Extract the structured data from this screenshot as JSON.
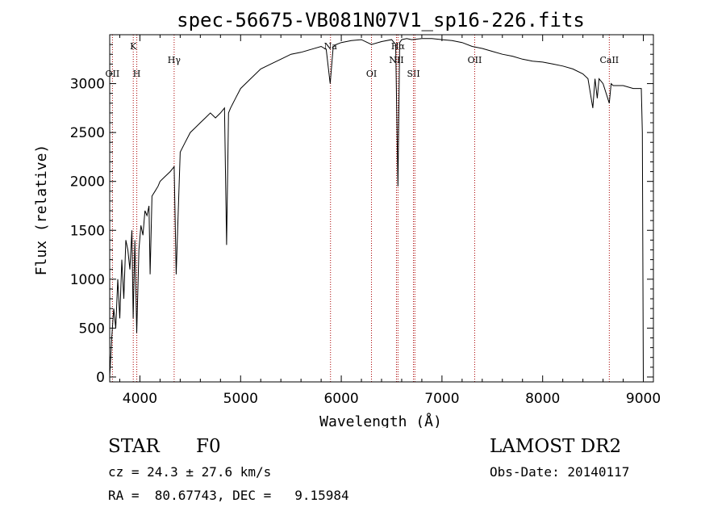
{
  "chart_data": {
    "type": "line",
    "title": "spec-56675-VB081N07V1_sp16-226.fits",
    "xlabel": "Wavelength (Å)",
    "ylabel": "Flux (relative)",
    "xlim": [
      3700,
      9100
    ],
    "ylim": [
      -50,
      3500
    ],
    "xticks": [
      4000,
      5000,
      6000,
      7000,
      8000,
      9000
    ],
    "yticks": [
      0,
      500,
      1000,
      1500,
      2000,
      2500,
      3000
    ],
    "series": [
      {
        "x": [
          3700,
          3720,
          3740,
          3760,
          3780,
          3800,
          3820,
          3840,
          3860,
          3880,
          3900,
          3920,
          3933,
          3950,
          3968,
          3990,
          4010,
          4030,
          4050,
          4070,
          4090,
          4101,
          4120,
          4150,
          4180,
          4200,
          4250,
          4300,
          4340,
          4360,
          4400,
          4450,
          4500,
          4550,
          4600,
          4650,
          4700,
          4750,
          4800,
          4840,
          4861,
          4880,
          4900,
          4950,
          5000,
          5100,
          5200,
          5300,
          5400,
          5500,
          5600,
          5700,
          5800,
          5850,
          5890,
          5920,
          5950,
          6000,
          6100,
          6200,
          6300,
          6400,
          6500,
          6540,
          6563,
          6580,
          6600,
          6650,
          6700,
          6800,
          6900,
          7000,
          7100,
          7200,
          7300,
          7400,
          7500,
          7600,
          7700,
          7800,
          7900,
          8000,
          8100,
          8200,
          8300,
          8400,
          8450,
          8498,
          8520,
          8542,
          8560,
          8600,
          8662,
          8680,
          8700,
          8800,
          8900,
          8950,
          8980,
          8990,
          9000
        ],
        "y": [
          0,
          400,
          700,
          500,
          1000,
          600,
          1200,
          800,
          1400,
          1300,
          1100,
          1500,
          600,
          1400,
          450,
          1300,
          1550,
          1450,
          1700,
          1650,
          1750,
          1050,
          1850,
          1900,
          1950,
          2000,
          2050,
          2100,
          2150,
          1050,
          2300,
          2400,
          2500,
          2550,
          2600,
          2650,
          2700,
          2650,
          2700,
          2750,
          1350,
          2700,
          2750,
          2850,
          2950,
          3050,
          3150,
          3200,
          3250,
          3300,
          3320,
          3350,
          3380,
          3350,
          3000,
          3380,
          3400,
          3420,
          3440,
          3450,
          3400,
          3430,
          3450,
          3400,
          1950,
          3420,
          3450,
          3460,
          3450,
          3460,
          3460,
          3450,
          3440,
          3420,
          3380,
          3360,
          3330,
          3300,
          3280,
          3250,
          3230,
          3220,
          3200,
          3180,
          3150,
          3100,
          3050,
          2750,
          3050,
          2850,
          3050,
          3000,
          2800,
          3000,
          2980,
          2980,
          2950,
          2950,
          2950,
          2500,
          -20
        ],
        "color": "#000000"
      }
    ],
    "lines": [
      {
        "label": "K",
        "x": 3934,
        "row": "high"
      },
      {
        "label": "H",
        "x": 3969,
        "row": "low"
      },
      {
        "label": "OII",
        "x": 3727,
        "row": "low"
      },
      {
        "label": "Hγ",
        "x": 4340,
        "row": "mid"
      },
      {
        "label": "Na",
        "x": 5893,
        "row": "high"
      },
      {
        "label": "OI",
        "x": 6300,
        "row": "low"
      },
      {
        "label": "NII",
        "x": 6548,
        "row": "mid"
      },
      {
        "label": "Hα",
        "x": 6563,
        "row": "high"
      },
      {
        "label": "SII",
        "x": 6717,
        "row": "low"
      },
      {
        "label": "",
        "x": 6731,
        "row": "low"
      },
      {
        "label": "OII",
        "x": 7325,
        "row": "mid"
      },
      {
        "label": "CaII",
        "x": 8662,
        "row": "mid"
      }
    ],
    "line_color": "#aa0000",
    "grid": false,
    "legend": "none"
  },
  "info": {
    "object_class": "STAR",
    "subclass": "F0",
    "survey": "LAMOST DR2",
    "redshift": "cz = 24.3 ± 27.6 km/s",
    "obs_date": "Obs-Date: 20140117",
    "coords": "RA =  80.67743, DEC =   9.15984"
  }
}
